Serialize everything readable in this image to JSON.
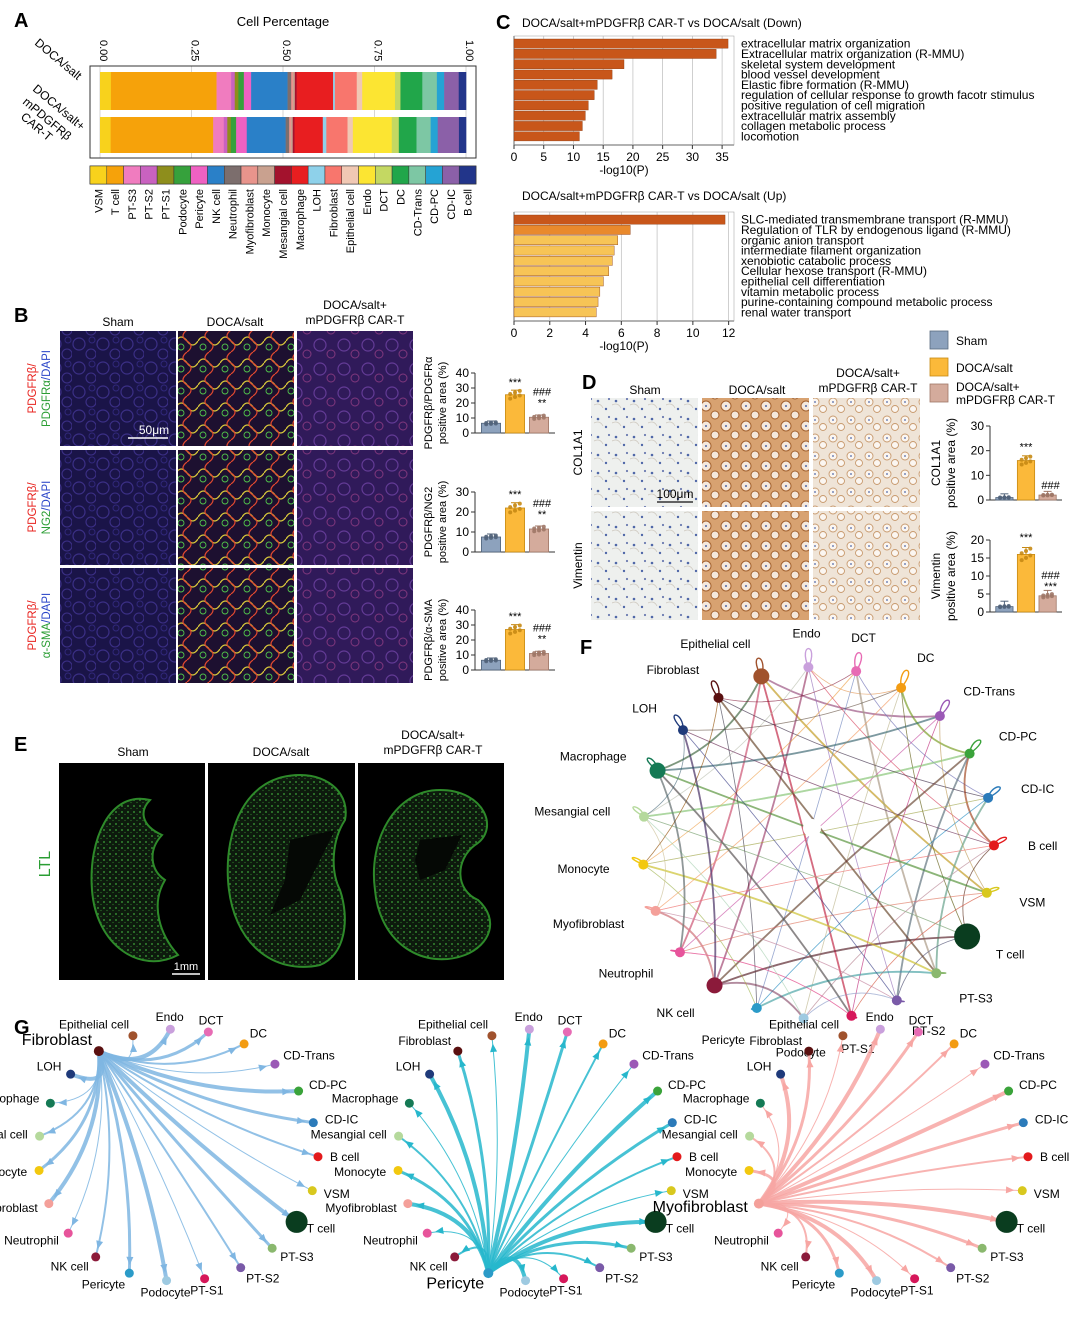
{
  "panels": {
    "A": "A",
    "B": "B",
    "C": "C",
    "D": "D",
    "E": "E",
    "F": "F",
    "G": "G"
  },
  "colors": {
    "sham": "#8da2bd",
    "doca": "#fbb93a",
    "car": "#d4ab9c",
    "enrich_dark": "#c8561a",
    "enrich_mid": "#e9892c",
    "enrich_light": "#f7c456"
  },
  "panelA": {
    "title": "Cell Percentage",
    "ticks": [
      "0.00",
      "0.25",
      "0.50",
      "0.75",
      "1.00"
    ],
    "rows": [
      "DOCA/salt",
      "DOCA/salt+ mPDGFRβ CAR-T"
    ],
    "row1_lines": [
      "DOCA/salt"
    ],
    "row2_lines": [
      "DOCA/salt+",
      "mPDGFRβ",
      "CAR-T"
    ],
    "cell_types": [
      "VSM",
      "T cell",
      "PT-S3",
      "PT-S2",
      "PT-S1",
      "Podocyte",
      "Pericyte",
      "NK cell",
      "Neutrophil",
      "Myofibroblast",
      "Monocyte",
      "Mesangial cell",
      "Macrophage",
      "LOH",
      "Fibroblast",
      "Epithelial cell",
      "Endo",
      "DCT",
      "DC",
      "CD-Trans",
      "CD-PC",
      "CD-IC",
      "B cell"
    ],
    "cell_colors": [
      "#f8d21c",
      "#f6a20a",
      "#f07cbf",
      "#c962c0",
      "#8e8e1c",
      "#36a13c",
      "#ef61c2",
      "#2a80c8",
      "#7c6e6d",
      "#e8948c",
      "#c9a18f",
      "#a3122d",
      "#e81e20",
      "#8ed1ea",
      "#f8766d",
      "#f0c8b4",
      "#fce532",
      "#c4d862",
      "#21a64a",
      "#7dc7a4",
      "#25a3d4",
      "#8b60a8",
      "#22358a"
    ],
    "fractions_doca": [
      0.03,
      0.29,
      0.04,
      0.01,
      0.01,
      0.015,
      0.02,
      0.1,
      0.01,
      0.005,
      0.005,
      0.005,
      0.1,
      0.005,
      0.06,
      0.015,
      0.09,
      0.015,
      0.06,
      0.04,
      0.02,
      0.04,
      0.02
    ],
    "fractions_car": [
      0.03,
      0.29,
      0.03,
      0.01,
      0.01,
      0.015,
      0.03,
      0.11,
      0.01,
      0.005,
      0.005,
      0.005,
      0.08,
      0.01,
      0.06,
      0.015,
      0.11,
      0.02,
      0.05,
      0.04,
      0.02,
      0.06,
      0.02
    ]
  },
  "panelB": {
    "columns": [
      "Sham",
      "DOCA/salt",
      "DOCA/salt+ mPDGFRβ CAR-T"
    ],
    "col3_lines": [
      "DOCA/salt+",
      "mPDGFRβ CAR-T"
    ],
    "scale_bar": "50μm",
    "rows": [
      {
        "stain_red": "PDGFRβ/",
        "stain_green": "PDGFRα",
        "stain_blue": "/DAPI",
        "ylabel1": "PDGFRβ/PDGFRα",
        "ylabel2": "positive area (%)",
        "yticks": [
          "0",
          "10",
          "20",
          "30",
          "40"
        ],
        "ymax": 40,
        "values": [
          6.5,
          25.5,
          10.5
        ],
        "sig_doca": "***",
        "sig_car": [
          "###",
          "**"
        ]
      },
      {
        "stain_red": "PDGFRβ/",
        "stain_green": "NG2",
        "stain_blue": "/DAPI",
        "ylabel1": "PDGFRβ/NG2",
        "ylabel2": "positive area (%)",
        "yticks": [
          "0",
          "10",
          "20",
          "30"
        ],
        "ymax": 30,
        "values": [
          7.5,
          22.0,
          11.5
        ],
        "sig_doca": "***",
        "sig_car": [
          "###",
          "**"
        ]
      },
      {
        "stain_red": "PDGFRβ/",
        "stain_green": "α-SMA",
        "stain_blue": "/DAPI",
        "ylabel1": "PDGFRβ/α-SMA",
        "ylabel2": "positive area (%)",
        "yticks": [
          "0",
          "10",
          "20",
          "30",
          "40"
        ],
        "ymax": 40,
        "values": [
          6.5,
          27.0,
          11.0
        ],
        "sig_doca": "***",
        "sig_car": [
          "###",
          "**"
        ]
      }
    ]
  },
  "panelC": {
    "down": {
      "title": "DOCA/salt+mPDGFRβ CAR-T vs DOCA/salt (Down)",
      "xlabel": "-log10(P)",
      "xticks": [
        "0",
        "5",
        "10",
        "15",
        "20",
        "25",
        "30",
        "35"
      ],
      "xmax": 37,
      "terms": [
        "extracellular matrix organization",
        "Extracellular matrix organization (R-MMU)",
        "skeletal system development",
        "blood vessel development",
        "Elastic fibre formation (R-MMU)",
        "regulation of cellular response to growth facotr stimulus",
        "positive regulation of cell migration",
        "extracellular matrix assembly",
        "collagen metabolic process",
        "locomotion"
      ],
      "values": [
        36,
        34,
        18.5,
        16.5,
        14,
        13.5,
        12.5,
        12,
        11.5,
        11
      ]
    },
    "up": {
      "title": "DOCA/salt+mPDGFRβ CAR-T vs DOCA/salt (Up)",
      "xlabel": "-log10(P)",
      "xticks": [
        "0",
        "2",
        "4",
        "6",
        "8",
        "10",
        "12"
      ],
      "xmax": 12.3,
      "terms": [
        "SLC-mediated transmembrane transport (R-MMU)",
        "Regulation of TLR by endogenous ligand (R-MMU)",
        "organic anion transport",
        "intermediate filament organization",
        "xenobiotic catabolic process",
        "Cellular hexose transport (R-MMU)",
        "epithelial cell differentiation",
        "vitamin metabolic process",
        "purine-containing compound metabolic process",
        "renal water transport"
      ],
      "values": [
        11.8,
        6.5,
        5.8,
        5.6,
        5.5,
        5.3,
        5.0,
        4.8,
        4.7,
        4.6
      ]
    }
  },
  "legend": {
    "items": [
      "Sham",
      "DOCA/salt",
      "DOCA/salt+ mPDGFRβ CAR-T"
    ],
    "item3_lines": [
      "DOCA/salt+",
      "mPDGFRβ CAR-T"
    ]
  },
  "panelD": {
    "columns": [
      "Sham",
      "DOCA/salt",
      "DOCA/salt+ mPDGFRβ CAR-T"
    ],
    "col3_lines": [
      "DOCA/salt+",
      "mPDGFRβ CAR-T"
    ],
    "scale_bar": "100μm",
    "rows": [
      {
        "stain": "COL1A1",
        "ylabel1": "COL1A1",
        "ylabel2": "positive area (%)",
        "yticks": [
          "0",
          "10",
          "20",
          "30"
        ],
        "ymax": 30,
        "values": [
          1.0,
          16.0,
          2.0
        ],
        "sig_doca": "***",
        "sig_car": [
          "###"
        ]
      },
      {
        "stain": "Vimentin",
        "ylabel1": "Vimentin",
        "ylabel2": "positive area (%)",
        "yticks": [
          "0",
          "5",
          "10",
          "15",
          "20"
        ],
        "ymax": 20,
        "values": [
          1.5,
          16.0,
          4.5
        ],
        "sig_doca": "***",
        "sig_car": [
          "###",
          "***"
        ]
      }
    ]
  },
  "panelE": {
    "columns": [
      "Sham",
      "DOCA/salt",
      "DOCA/salt+ mPDGFRβ CAR-T"
    ],
    "col3_lines": [
      "DOCA/salt+",
      "mPDGFRβ CAR-T"
    ],
    "stain": "LTL",
    "scale_bar": "1mm"
  },
  "network": {
    "nodes": [
      {
        "name": "Epithelial cell",
        "color": "#a0522d"
      },
      {
        "name": "Endo",
        "color": "#c9a0dc"
      },
      {
        "name": "DCT",
        "color": "#e76bb4"
      },
      {
        "name": "DC",
        "color": "#f39c12"
      },
      {
        "name": "CD-Trans",
        "color": "#9b59b6"
      },
      {
        "name": "CD-PC",
        "color": "#3aa33a"
      },
      {
        "name": "CD-IC",
        "color": "#2b7bba"
      },
      {
        "name": "B cell",
        "color": "#e31a1c"
      },
      {
        "name": "VSM",
        "color": "#d8c81e"
      },
      {
        "name": "T cell",
        "color": "#0a3d1f"
      },
      {
        "name": "PT-S3",
        "color": "#8ab86e"
      },
      {
        "name": "PT-S2",
        "color": "#7a5aa8"
      },
      {
        "name": "PT-S1",
        "color": "#d6175a"
      },
      {
        "name": "Podocyte",
        "color": "#9ecae1"
      },
      {
        "name": "Pericyte",
        "color": "#2b9bc8"
      },
      {
        "name": "NK cell",
        "color": "#8b1a3a"
      },
      {
        "name": "Neutrophil",
        "color": "#e7549b"
      },
      {
        "name": "Myofibroblast",
        "color": "#f4a09a"
      },
      {
        "name": "Monocyte",
        "color": "#f2c80f"
      },
      {
        "name": "Mesangial cell",
        "color": "#b5d99c"
      },
      {
        "name": "Macrophage",
        "color": "#157a55"
      },
      {
        "name": "LOH",
        "color": "#1f3a7a"
      },
      {
        "name": "Fibroblast",
        "color": "#5a1010"
      }
    ],
    "g_sources": [
      "Fibroblast",
      "Pericyte",
      "Myofibroblast"
    ],
    "g_colors": [
      "#7fb6e2",
      "#27b7cc",
      "#f7a6a3"
    ]
  }
}
